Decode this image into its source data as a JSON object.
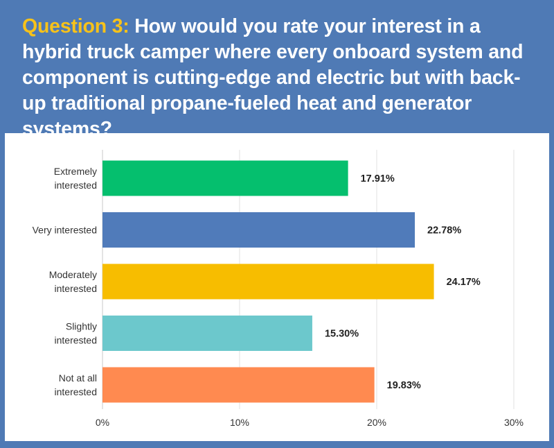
{
  "header": {
    "question_label": "Question 3:",
    "question_text": "How would you rate your interest in a hybrid truck camper where every onboard system and component is cutting-edge and electric but with back-up traditional propane-fueled heat and generator systems?"
  },
  "colors": {
    "background": "#4f7ab5",
    "question_label": "#f7c21a"
  },
  "chart_data": {
    "type": "bar",
    "orientation": "horizontal",
    "categories": [
      [
        "Extremely",
        "interested"
      ],
      [
        "Very interested"
      ],
      [
        "Moderately",
        "interested"
      ],
      [
        "Slightly",
        "interested"
      ],
      [
        "Not at all",
        "interested"
      ]
    ],
    "values": [
      17.91,
      22.78,
      24.17,
      15.3,
      19.83
    ],
    "value_labels": [
      "17.91%",
      "22.78%",
      "24.17%",
      "15.30%",
      "19.83%"
    ],
    "colors": [
      "#05bf6e",
      "#507bba",
      "#f7bd00",
      "#6cc8cc",
      "#ff8a50"
    ],
    "xlim": [
      0,
      30
    ],
    "x_ticks": [
      0,
      10,
      20,
      30
    ],
    "x_tick_labels": [
      "0%",
      "10%",
      "20%",
      "30%"
    ],
    "grid": true
  }
}
